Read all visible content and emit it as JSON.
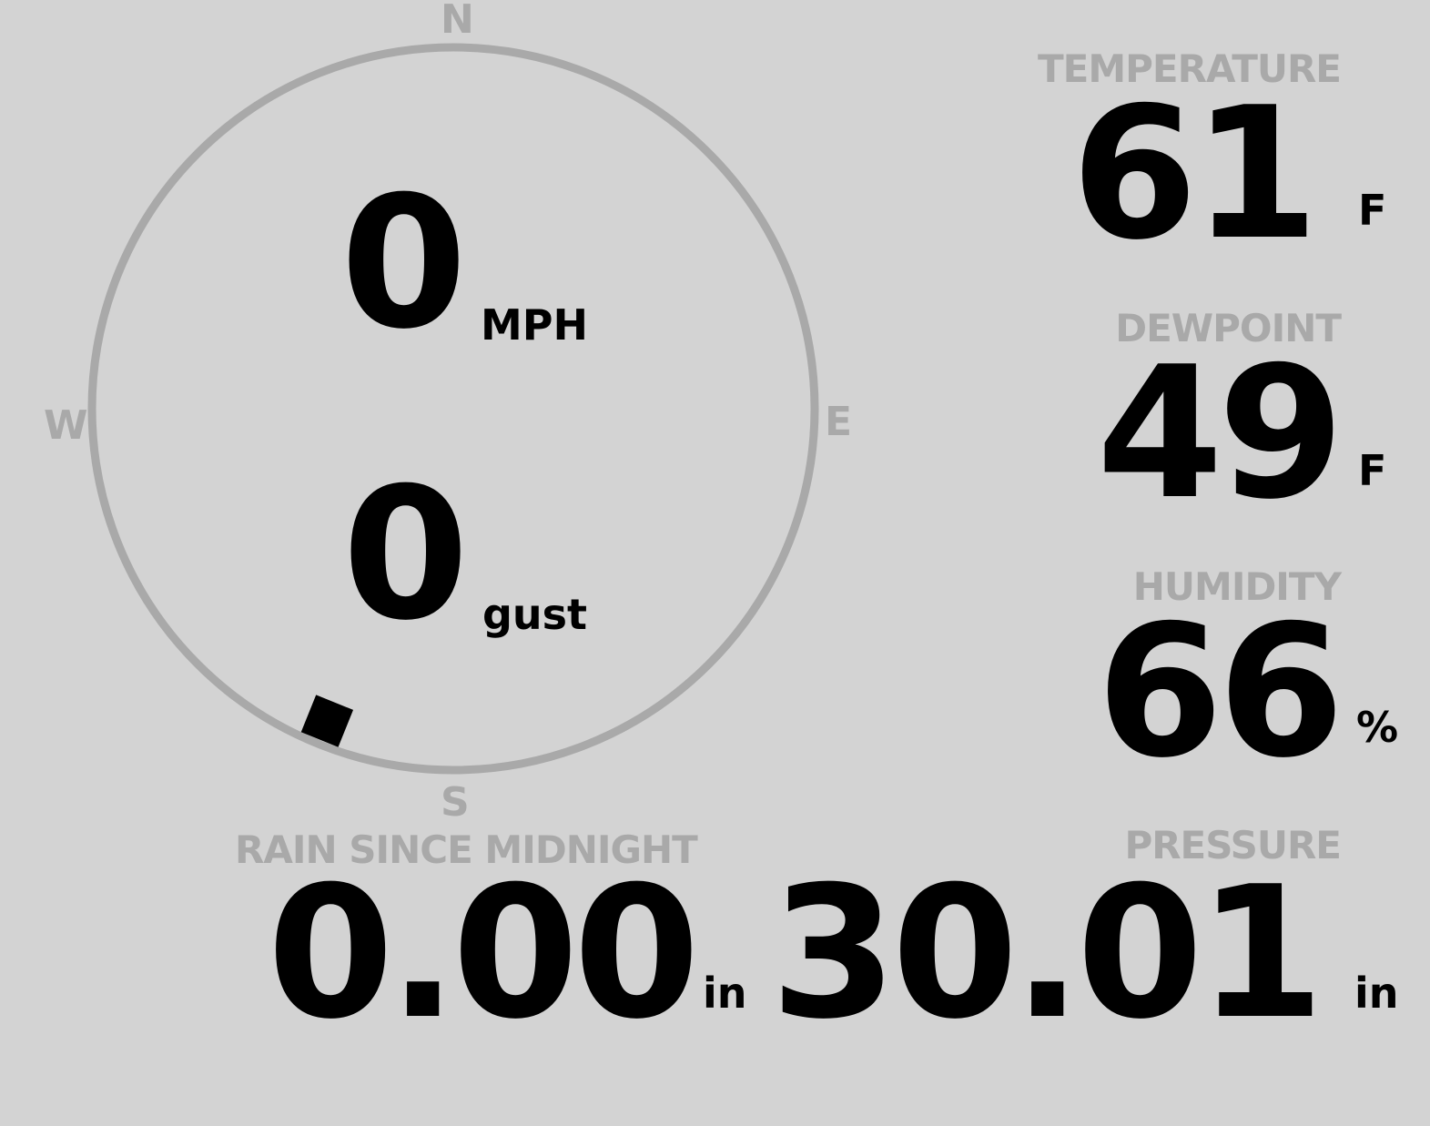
{
  "wind": {
    "speed": "0",
    "speed_unit": "MPH",
    "gust": "0",
    "gust_unit": "gust",
    "direction_deg": 202,
    "cardinals": {
      "n": "N",
      "e": "E",
      "s": "S",
      "w": "W"
    }
  },
  "temperature": {
    "label": "TEMPERATURE",
    "value": "61",
    "unit": "F"
  },
  "dewpoint": {
    "label": "DEWPOINT",
    "value": "49",
    "unit": "F"
  },
  "humidity": {
    "label": "HUMIDITY",
    "value": "66",
    "unit": "%"
  },
  "rain": {
    "label": "RAIN SINCE MIDNIGHT",
    "value": "0.00",
    "unit": "in"
  },
  "pressure": {
    "label": "PRESSURE",
    "value": "30.01",
    "unit": "in"
  },
  "colors": {
    "background": "#d3d3d3",
    "muted": "#a9a9a9",
    "text": "#000000"
  }
}
